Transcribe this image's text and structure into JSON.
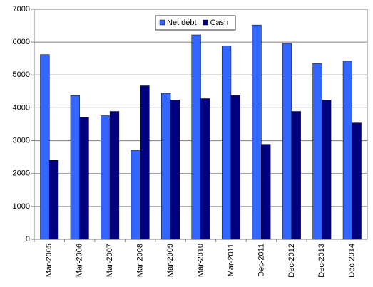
{
  "chart_data": {
    "type": "bar",
    "categories": [
      "Mar-2005",
      "Mar-2006",
      "Mar-2007",
      "Mar-2008",
      "Mar-2009",
      "Mar-2010",
      "Mar-2011",
      "Dec-2011",
      "Dec-2012",
      "Dec-2013",
      "Dec-2014"
    ],
    "series": [
      {
        "name": "Net debt",
        "color": "#3366ff",
        "values": [
          5620,
          4370,
          3760,
          2700,
          4440,
          6220,
          5890,
          6520,
          5960,
          5350,
          5420
        ]
      },
      {
        "name": "Cash",
        "color": "#000080",
        "values": [
          2400,
          3720,
          3890,
          4670,
          4240,
          4280,
          4370,
          2890,
          3890,
          4240,
          3540
        ]
      }
    ],
    "ylim": [
      0,
      7000
    ],
    "yticks": [
      0,
      1000,
      2000,
      3000,
      4000,
      5000,
      6000,
      7000
    ],
    "grid": true
  }
}
